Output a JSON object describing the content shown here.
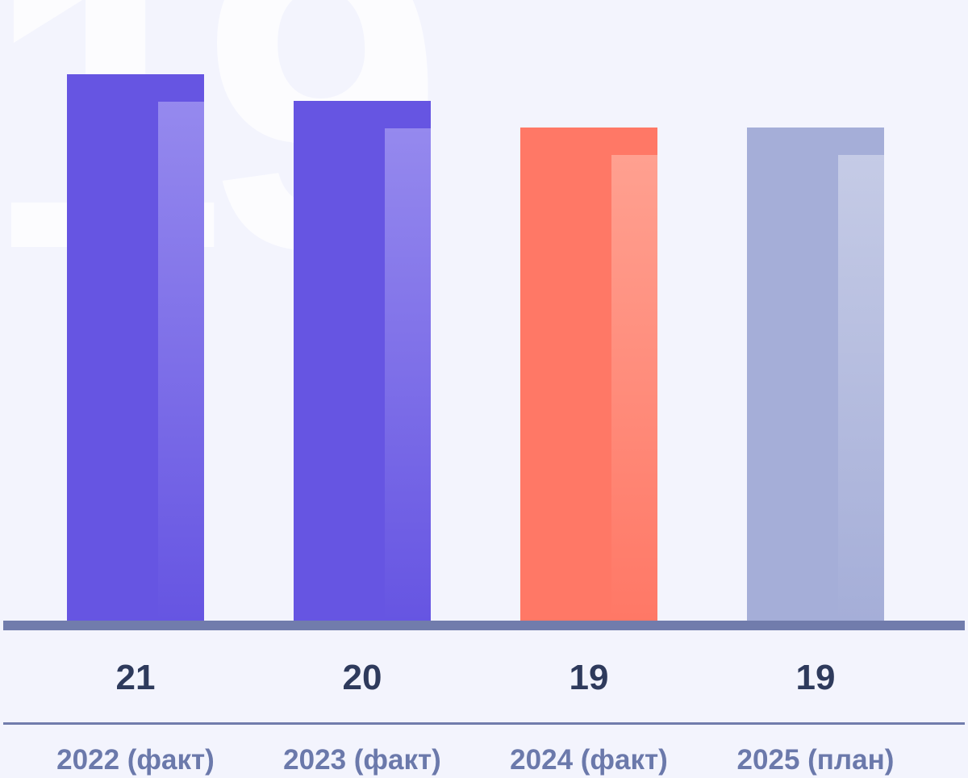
{
  "chart_data": {
    "type": "bar",
    "categories": [
      "2022 (факт)",
      "2023 (факт)",
      "2024 (факт)",
      "2025 (план)"
    ],
    "values": [
      21,
      20,
      19,
      19
    ],
    "data_labels": [
      "21",
      "20",
      "19",
      "19"
    ],
    "ylim": [
      0,
      21
    ],
    "grid": false,
    "background_text": "19",
    "colors": {
      "bars": [
        "#6655e2",
        "#6655e2",
        "#ff7866",
        "#a5aed8"
      ],
      "bar_highlights": [
        "#9589ee",
        "#9589ee",
        "#ffa090",
        "#c5cbe6"
      ],
      "axis": "#717cac",
      "value_text": "#2e3a5c",
      "category_text": "#6b79ab",
      "background": "#f3f4fd"
    }
  }
}
